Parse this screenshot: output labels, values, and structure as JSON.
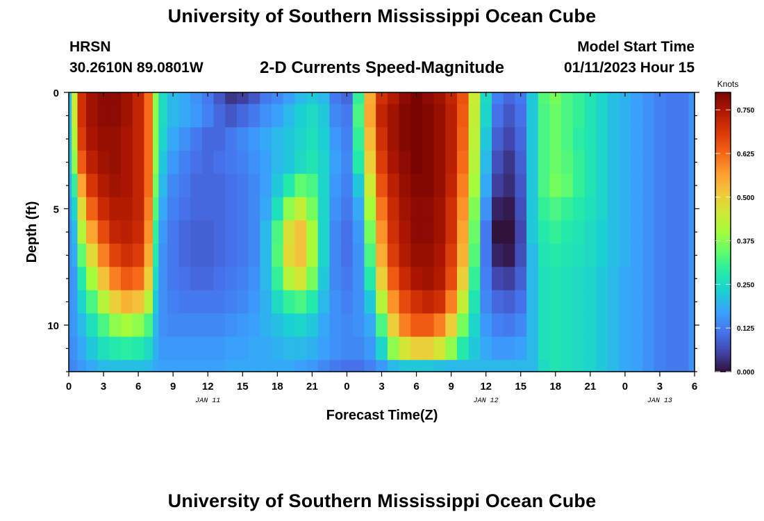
{
  "header": {
    "title": "University of Southern Mississippi Ocean Cube",
    "station": "HRSN",
    "coords": "30.2610N  89.0801W",
    "subtitle": "2-D Currents Speed-Magnitude",
    "start_label": "Model Start Time",
    "start_value": "01/11/2023 Hour 15"
  },
  "footer": {
    "title": "University of Southern Mississippi Ocean Cube"
  },
  "colors": {
    "colormap": [
      "#30123b",
      "#4145ab",
      "#4675ed",
      "#39a2fc",
      "#1bcfd4",
      "#24eca6",
      "#61fc6c",
      "#a4fc3b",
      "#d1e834",
      "#f3c63a",
      "#fe9b2d",
      "#f36315",
      "#d93806",
      "#b11901",
      "#7a0402"
    ]
  },
  "chart_data": {
    "type": "heatmap",
    "xlabel": "Forecast Time(Z)",
    "ylabel": "Depth (ft)",
    "colorbar_label": "Knots",
    "x_ticks": [
      "0",
      "3",
      "6",
      "9",
      "12",
      "15",
      "18",
      "21",
      "0",
      "3",
      "6",
      "9",
      "12",
      "15",
      "18",
      "21",
      "0",
      "3",
      "6"
    ],
    "date_labels": [
      {
        "text": "JAN 11",
        "at_hour": 12
      },
      {
        "text": "JAN 12",
        "at_hour": 36
      },
      {
        "text": "JAN 13",
        "at_hour": 51
      }
    ],
    "y_ticks": [
      "0",
      "5",
      "10"
    ],
    "y_range": [
      0,
      12
    ],
    "x_range_hours": [
      0,
      54
    ],
    "colorbar_ticks": [
      "0.000",
      "0.125",
      "0.250",
      "0.375",
      "0.500",
      "0.625",
      "0.750"
    ],
    "value_range": [
      0,
      0.8
    ],
    "depth_levels": [
      0,
      1,
      2,
      3,
      4,
      5,
      6,
      7,
      8,
      9,
      10,
      11,
      12
    ],
    "time_nodes": [
      0,
      0.5,
      1,
      2,
      3,
      4,
      5,
      6,
      7,
      7.5,
      8,
      9,
      10,
      11,
      12,
      13,
      14,
      15,
      16,
      17,
      18,
      19,
      20,
      21,
      22,
      23,
      24,
      25,
      26,
      27,
      28,
      29,
      30,
      31,
      32,
      33,
      34,
      35,
      36,
      37,
      38,
      39,
      40,
      41,
      42,
      43,
      44,
      45,
      46,
      47,
      48,
      49,
      50,
      51,
      52,
      53,
      54
    ],
    "speed_knots": [
      [
        0.2,
        0.45,
        0.7,
        0.76,
        0.78,
        0.78,
        0.76,
        0.72,
        0.62,
        0.38,
        0.25,
        0.2,
        0.18,
        0.15,
        0.12,
        0.08,
        0.04,
        0.05,
        0.08,
        0.12,
        0.14,
        0.17,
        0.2,
        0.22,
        0.2,
        0.12,
        0.1,
        0.3,
        0.55,
        0.7,
        0.74,
        0.78,
        0.8,
        0.78,
        0.76,
        0.72,
        0.65,
        0.45,
        0.25,
        0.13,
        0.1,
        0.12,
        0.22,
        0.33,
        0.36,
        0.32,
        0.3,
        0.27,
        0.24,
        0.21,
        0.19,
        0.17,
        0.15,
        0.13,
        0.12,
        0.12,
        0.15
      ],
      [
        0.2,
        0.45,
        0.7,
        0.76,
        0.78,
        0.78,
        0.76,
        0.72,
        0.62,
        0.38,
        0.25,
        0.2,
        0.18,
        0.16,
        0.13,
        0.1,
        0.08,
        0.1,
        0.12,
        0.15,
        0.17,
        0.2,
        0.23,
        0.25,
        0.22,
        0.14,
        0.12,
        0.32,
        0.56,
        0.72,
        0.76,
        0.79,
        0.8,
        0.79,
        0.77,
        0.73,
        0.64,
        0.44,
        0.24,
        0.11,
        0.08,
        0.11,
        0.22,
        0.32,
        0.35,
        0.32,
        0.3,
        0.27,
        0.24,
        0.21,
        0.19,
        0.17,
        0.15,
        0.13,
        0.12,
        0.12,
        0.15
      ],
      [
        0.2,
        0.42,
        0.68,
        0.75,
        0.77,
        0.77,
        0.75,
        0.72,
        0.62,
        0.38,
        0.24,
        0.18,
        0.15,
        0.12,
        0.1,
        0.1,
        0.12,
        0.14,
        0.16,
        0.18,
        0.2,
        0.22,
        0.24,
        0.26,
        0.23,
        0.16,
        0.13,
        0.3,
        0.53,
        0.7,
        0.76,
        0.79,
        0.8,
        0.79,
        0.77,
        0.73,
        0.63,
        0.43,
        0.22,
        0.09,
        0.06,
        0.1,
        0.22,
        0.32,
        0.35,
        0.32,
        0.29,
        0.27,
        0.24,
        0.21,
        0.19,
        0.17,
        0.15,
        0.13,
        0.12,
        0.12,
        0.15
      ],
      [
        0.2,
        0.38,
        0.64,
        0.73,
        0.76,
        0.77,
        0.75,
        0.72,
        0.62,
        0.38,
        0.22,
        0.16,
        0.13,
        0.11,
        0.1,
        0.11,
        0.12,
        0.13,
        0.15,
        0.17,
        0.2,
        0.22,
        0.25,
        0.27,
        0.24,
        0.17,
        0.14,
        0.28,
        0.5,
        0.68,
        0.75,
        0.78,
        0.8,
        0.79,
        0.77,
        0.73,
        0.62,
        0.42,
        0.2,
        0.07,
        0.04,
        0.09,
        0.22,
        0.32,
        0.35,
        0.33,
        0.3,
        0.27,
        0.24,
        0.21,
        0.19,
        0.17,
        0.15,
        0.13,
        0.12,
        0.12,
        0.15
      ],
      [
        0.18,
        0.3,
        0.56,
        0.69,
        0.74,
        0.76,
        0.75,
        0.72,
        0.62,
        0.36,
        0.2,
        0.14,
        0.12,
        0.1,
        0.1,
        0.1,
        0.11,
        0.12,
        0.14,
        0.17,
        0.22,
        0.28,
        0.34,
        0.32,
        0.24,
        0.16,
        0.13,
        0.22,
        0.45,
        0.65,
        0.73,
        0.77,
        0.79,
        0.79,
        0.77,
        0.72,
        0.6,
        0.4,
        0.18,
        0.05,
        0.03,
        0.08,
        0.22,
        0.32,
        0.36,
        0.34,
        0.3,
        0.27,
        0.24,
        0.21,
        0.19,
        0.17,
        0.15,
        0.13,
        0.12,
        0.12,
        0.15
      ],
      [
        0.16,
        0.24,
        0.48,
        0.63,
        0.71,
        0.74,
        0.74,
        0.72,
        0.6,
        0.33,
        0.18,
        0.13,
        0.11,
        0.1,
        0.1,
        0.1,
        0.11,
        0.12,
        0.14,
        0.18,
        0.26,
        0.38,
        0.44,
        0.36,
        0.24,
        0.15,
        0.12,
        0.18,
        0.4,
        0.61,
        0.71,
        0.76,
        0.78,
        0.78,
        0.76,
        0.7,
        0.58,
        0.37,
        0.15,
        0.02,
        0.01,
        0.07,
        0.22,
        0.3,
        0.32,
        0.3,
        0.28,
        0.26,
        0.24,
        0.21,
        0.19,
        0.17,
        0.15,
        0.13,
        0.12,
        0.12,
        0.15
      ],
      [
        0.15,
        0.2,
        0.42,
        0.56,
        0.66,
        0.72,
        0.73,
        0.71,
        0.58,
        0.3,
        0.16,
        0.12,
        0.1,
        0.09,
        0.09,
        0.1,
        0.11,
        0.12,
        0.14,
        0.2,
        0.32,
        0.47,
        0.52,
        0.4,
        0.24,
        0.14,
        0.11,
        0.16,
        0.36,
        0.58,
        0.7,
        0.75,
        0.78,
        0.78,
        0.76,
        0.7,
        0.56,
        0.35,
        0.12,
        0.0,
        0.0,
        0.06,
        0.22,
        0.28,
        0.3,
        0.28,
        0.27,
        0.25,
        0.23,
        0.21,
        0.19,
        0.17,
        0.15,
        0.13,
        0.12,
        0.12,
        0.15
      ],
      [
        0.15,
        0.18,
        0.34,
        0.48,
        0.6,
        0.67,
        0.7,
        0.68,
        0.55,
        0.28,
        0.15,
        0.12,
        0.1,
        0.09,
        0.09,
        0.1,
        0.11,
        0.12,
        0.14,
        0.2,
        0.33,
        0.48,
        0.52,
        0.4,
        0.24,
        0.14,
        0.11,
        0.15,
        0.32,
        0.55,
        0.68,
        0.74,
        0.77,
        0.77,
        0.75,
        0.68,
        0.54,
        0.33,
        0.12,
        0.02,
        0.01,
        0.07,
        0.2,
        0.27,
        0.28,
        0.27,
        0.26,
        0.25,
        0.23,
        0.21,
        0.19,
        0.17,
        0.15,
        0.13,
        0.12,
        0.12,
        0.15
      ],
      [
        0.15,
        0.16,
        0.28,
        0.4,
        0.52,
        0.6,
        0.64,
        0.62,
        0.5,
        0.25,
        0.15,
        0.12,
        0.11,
        0.1,
        0.1,
        0.11,
        0.12,
        0.13,
        0.15,
        0.2,
        0.3,
        0.42,
        0.46,
        0.36,
        0.22,
        0.14,
        0.12,
        0.15,
        0.28,
        0.5,
        0.64,
        0.71,
        0.75,
        0.76,
        0.74,
        0.66,
        0.5,
        0.3,
        0.13,
        0.06,
        0.05,
        0.09,
        0.2,
        0.26,
        0.27,
        0.26,
        0.25,
        0.24,
        0.22,
        0.2,
        0.18,
        0.17,
        0.15,
        0.13,
        0.12,
        0.12,
        0.15
      ],
      [
        0.15,
        0.16,
        0.24,
        0.32,
        0.42,
        0.5,
        0.54,
        0.52,
        0.42,
        0.22,
        0.15,
        0.13,
        0.12,
        0.12,
        0.12,
        0.12,
        0.13,
        0.14,
        0.16,
        0.19,
        0.25,
        0.3,
        0.32,
        0.28,
        0.2,
        0.15,
        0.13,
        0.15,
        0.22,
        0.42,
        0.58,
        0.66,
        0.7,
        0.72,
        0.7,
        0.6,
        0.44,
        0.27,
        0.14,
        0.1,
        0.09,
        0.11,
        0.2,
        0.26,
        0.27,
        0.26,
        0.25,
        0.24,
        0.22,
        0.2,
        0.18,
        0.17,
        0.15,
        0.13,
        0.12,
        0.12,
        0.15
      ],
      [
        0.15,
        0.16,
        0.2,
        0.26,
        0.32,
        0.38,
        0.4,
        0.38,
        0.32,
        0.2,
        0.15,
        0.14,
        0.14,
        0.14,
        0.14,
        0.14,
        0.15,
        0.16,
        0.17,
        0.19,
        0.21,
        0.23,
        0.24,
        0.22,
        0.18,
        0.15,
        0.14,
        0.15,
        0.18,
        0.32,
        0.5,
        0.6,
        0.64,
        0.64,
        0.6,
        0.5,
        0.36,
        0.24,
        0.16,
        0.13,
        0.12,
        0.14,
        0.2,
        0.26,
        0.27,
        0.26,
        0.25,
        0.24,
        0.22,
        0.2,
        0.18,
        0.17,
        0.15,
        0.13,
        0.12,
        0.12,
        0.15
      ],
      [
        0.14,
        0.15,
        0.18,
        0.22,
        0.26,
        0.28,
        0.29,
        0.28,
        0.25,
        0.19,
        0.16,
        0.16,
        0.16,
        0.16,
        0.16,
        0.16,
        0.17,
        0.17,
        0.18,
        0.18,
        0.19,
        0.2,
        0.2,
        0.19,
        0.17,
        0.15,
        0.14,
        0.14,
        0.16,
        0.24,
        0.38,
        0.46,
        0.5,
        0.5,
        0.46,
        0.38,
        0.28,
        0.22,
        0.18,
        0.16,
        0.16,
        0.17,
        0.2,
        0.26,
        0.27,
        0.26,
        0.25,
        0.24,
        0.22,
        0.2,
        0.18,
        0.17,
        0.15,
        0.13,
        0.12,
        0.12,
        0.15
      ],
      [
        0.13,
        0.14,
        0.16,
        0.18,
        0.2,
        0.21,
        0.21,
        0.21,
        0.2,
        0.18,
        0.17,
        0.17,
        0.17,
        0.17,
        0.17,
        0.17,
        0.18,
        0.18,
        0.18,
        0.18,
        0.18,
        0.18,
        0.17,
        0.16,
        0.14,
        0.12,
        0.11,
        0.11,
        0.13,
        0.16,
        0.2,
        0.22,
        0.22,
        0.22,
        0.21,
        0.2,
        0.2,
        0.2,
        0.2,
        0.2,
        0.2,
        0.2,
        0.2,
        0.25,
        0.27,
        0.26,
        0.25,
        0.24,
        0.22,
        0.2,
        0.18,
        0.17,
        0.15,
        0.13,
        0.12,
        0.12,
        0.15
      ]
    ]
  }
}
